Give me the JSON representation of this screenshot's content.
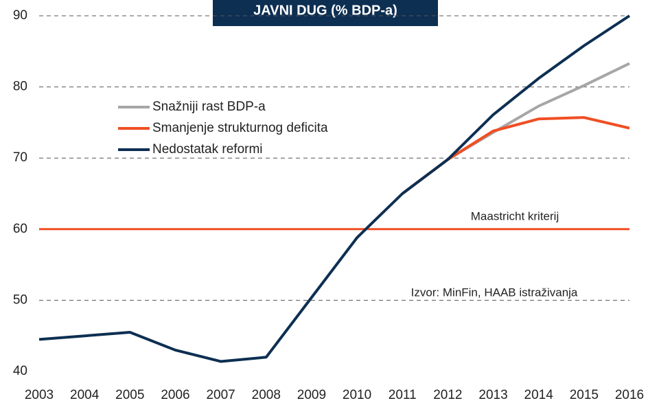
{
  "chart_data": {
    "type": "line",
    "title": "JAVNI DUG (% BDP-a)",
    "x": [
      2003,
      2004,
      2005,
      2006,
      2007,
      2008,
      2009,
      2010,
      2011,
      2012,
      2013,
      2014,
      2015,
      2016
    ],
    "series": [
      {
        "name": "Snažniji rast BDP-a",
        "color": "#a6a6a6",
        "values": [
          null,
          null,
          null,
          null,
          null,
          null,
          null,
          null,
          65,
          69.8,
          73.6,
          77.3,
          80.2,
          83.3
        ]
      },
      {
        "name": "Smanjenje strukturnog deficita",
        "color": "#f04e23",
        "values": [
          null,
          null,
          null,
          null,
          null,
          null,
          null,
          null,
          65,
          69.8,
          73.8,
          75.5,
          75.7,
          74.2
        ]
      },
      {
        "name": "Nedostatak reformi",
        "color": "#0d2f52",
        "values": [
          44.5,
          45,
          45.5,
          43,
          41.4,
          42,
          50.4,
          58.8,
          65,
          69.8,
          76.1,
          81.2,
          85.8,
          90
        ]
      }
    ],
    "reference_line": {
      "value": 60,
      "label": "Maastricht kriterij",
      "color": "#f04e23"
    },
    "annotation": "Izvor: MinFin, HAAB istraživanja",
    "xlim": [
      2003,
      2016
    ],
    "xticks": [
      2003,
      2004,
      2005,
      2006,
      2007,
      2008,
      2009,
      2010,
      2011,
      2012,
      2013,
      2014,
      2015,
      2016
    ],
    "ylim": [
      40,
      90
    ],
    "yticks": [
      40,
      50,
      60,
      70,
      80,
      90
    ],
    "grid": true
  }
}
